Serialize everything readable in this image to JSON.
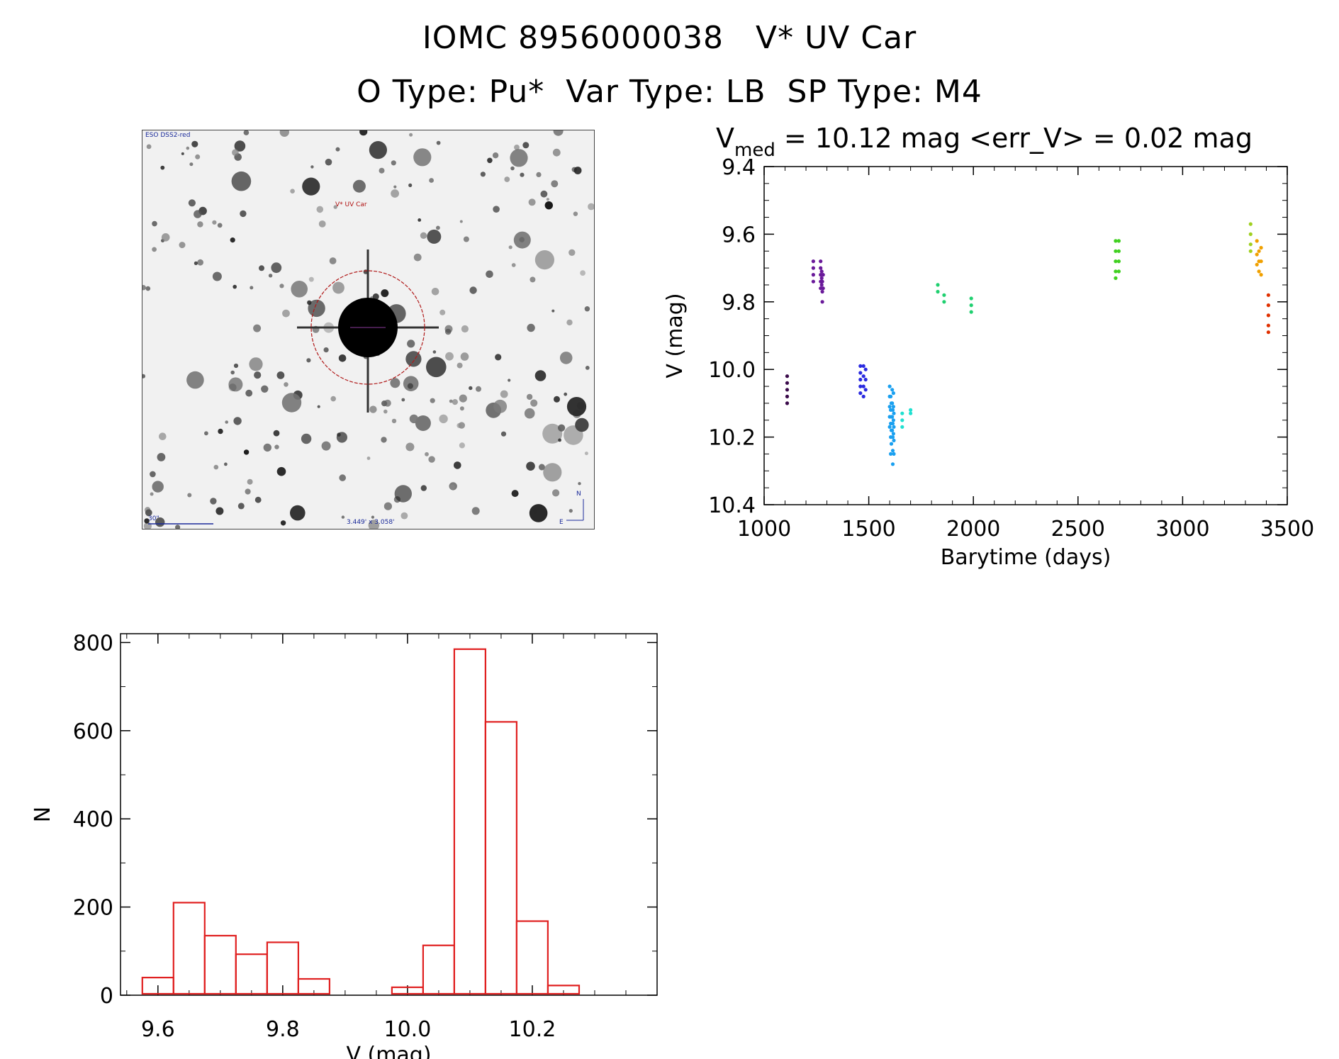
{
  "header": {
    "line1": "IOMC 8956000038   V* UV Car",
    "line2": "O Type: Pu*  Var Type: LB  SP Type: M4"
  },
  "finder": {
    "survey_label": "ESO DSS2-red",
    "target_label": "V* UV Car",
    "scale_label": "30\"",
    "fov_label": "3.449' x 3.058'",
    "north_label": "N",
    "east_label": "E"
  },
  "chart_data": [
    {
      "type": "scatter",
      "title_main": "V",
      "title_sub": "med",
      "title_rest": " = 10.12 mag <err_V> = 0.02 mag",
      "xlabel": "Barytime (days)",
      "ylabel": "V (mag)",
      "xlim": [
        1000,
        3500
      ],
      "ylim": [
        10.4,
        9.4
      ],
      "y_inverted": true,
      "xticks": [
        "1000",
        "1500",
        "2000",
        "2500",
        "3000",
        "3500"
      ],
      "yticks": [
        "9.4",
        "9.6",
        "9.8",
        "10.0",
        "10.2",
        "10.4"
      ],
      "series": [
        {
          "color": "#3a0a4a",
          "points": [
            [
              1110,
              10.02
            ],
            [
              1110,
              10.04
            ],
            [
              1110,
              10.06
            ],
            [
              1110,
              10.08
            ],
            [
              1110,
              10.1
            ]
          ]
        },
        {
          "color": "#6a1a9a",
          "points": [
            [
              1235,
              9.68
            ],
            [
              1235,
              9.7
            ],
            [
              1235,
              9.72
            ],
            [
              1235,
              9.74
            ],
            [
              1270,
              9.68
            ],
            [
              1270,
              9.7
            ],
            [
              1270,
              9.72
            ],
            [
              1270,
              9.74
            ],
            [
              1270,
              9.76
            ],
            [
              1275,
              9.71
            ],
            [
              1275,
              9.73
            ],
            [
              1275,
              9.75
            ],
            [
              1278,
              9.74
            ],
            [
              1278,
              9.77
            ],
            [
              1278,
              9.8
            ],
            [
              1282,
              9.72
            ],
            [
              1282,
              9.76
            ]
          ]
        },
        {
          "color": "#2a2ae0",
          "points": [
            [
              1460,
              9.99
            ],
            [
              1460,
              10.01
            ],
            [
              1460,
              10.03
            ],
            [
              1460,
              10.05
            ],
            [
              1460,
              10.07
            ],
            [
              1475,
              9.99
            ],
            [
              1475,
              10.02
            ],
            [
              1475,
              10.05
            ],
            [
              1475,
              10.08
            ],
            [
              1485,
              10.0
            ],
            [
              1485,
              10.03
            ],
            [
              1485,
              10.06
            ]
          ]
        },
        {
          "color": "#1aa0f0",
          "points": [
            [
              1600,
              10.05
            ],
            [
              1600,
              10.08
            ],
            [
              1600,
              10.11
            ],
            [
              1600,
              10.14
            ],
            [
              1600,
              10.17
            ],
            [
              1605,
              10.08
            ],
            [
              1605,
              10.12
            ],
            [
              1605,
              10.16
            ],
            [
              1605,
              10.2
            ],
            [
              1605,
              10.25
            ],
            [
              1608,
              10.1
            ],
            [
              1608,
              10.14
            ],
            [
              1608,
              10.18
            ],
            [
              1608,
              10.22
            ],
            [
              1612,
              10.06
            ],
            [
              1612,
              10.1
            ],
            [
              1612,
              10.14
            ],
            [
              1612,
              10.18
            ],
            [
              1615,
              10.12
            ],
            [
              1615,
              10.16
            ],
            [
              1615,
              10.2
            ],
            [
              1615,
              10.24
            ],
            [
              1615,
              10.28
            ],
            [
              1618,
              10.07
            ],
            [
              1618,
              10.11
            ],
            [
              1618,
              10.15
            ],
            [
              1618,
              10.19
            ],
            [
              1620,
              10.13
            ],
            [
              1620,
              10.17
            ],
            [
              1620,
              10.21
            ],
            [
              1620,
              10.25
            ]
          ]
        },
        {
          "color": "#20e0d0",
          "points": [
            [
              1660,
              10.13
            ],
            [
              1660,
              10.15
            ],
            [
              1660,
              10.17
            ],
            [
              1700,
              10.12
            ],
            [
              1700,
              10.13
            ]
          ]
        },
        {
          "color": "#20d070",
          "points": [
            [
              1830,
              9.75
            ],
            [
              1830,
              9.77
            ],
            [
              1860,
              9.78
            ],
            [
              1860,
              9.8
            ],
            [
              1990,
              9.79
            ],
            [
              1990,
              9.81
            ],
            [
              1990,
              9.83
            ]
          ]
        },
        {
          "color": "#40d020",
          "points": [
            [
              2680,
              9.62
            ],
            [
              2680,
              9.65
            ],
            [
              2680,
              9.68
            ],
            [
              2680,
              9.71
            ],
            [
              2680,
              9.73
            ],
            [
              2695,
              9.62
            ],
            [
              2695,
              9.65
            ],
            [
              2695,
              9.68
            ],
            [
              2695,
              9.71
            ]
          ]
        },
        {
          "color": "#a0d020",
          "points": [
            [
              3325,
              9.57
            ],
            [
              3325,
              9.6
            ],
            [
              3325,
              9.63
            ],
            [
              3325,
              9.65
            ]
          ]
        },
        {
          "color": "#f0a000",
          "points": [
            [
              3355,
              9.62
            ],
            [
              3355,
              9.66
            ],
            [
              3355,
              9.69
            ],
            [
              3365,
              9.65
            ],
            [
              3365,
              9.68
            ],
            [
              3365,
              9.71
            ],
            [
              3375,
              9.64
            ],
            [
              3375,
              9.68
            ],
            [
              3375,
              9.72
            ]
          ]
        },
        {
          "color": "#e03000",
          "points": [
            [
              3410,
              9.78
            ],
            [
              3410,
              9.81
            ],
            [
              3410,
              9.84
            ],
            [
              3410,
              9.87
            ],
            [
              3410,
              9.89
            ]
          ]
        }
      ]
    },
    {
      "type": "bar",
      "xlabel": "V (mag)",
      "ylabel": "N",
      "xlim": [
        9.54,
        10.4
      ],
      "ylim": [
        0,
        820
      ],
      "xticks": [
        "9.6",
        "9.8",
        "10.0",
        "10.2"
      ],
      "yticks": [
        "0",
        "200",
        "400",
        "600",
        "800"
      ],
      "bar_color": "#e02020",
      "bins": [
        9.575,
        9.625,
        9.675,
        9.725,
        9.775,
        9.825,
        9.875,
        9.925,
        9.975,
        10.025,
        10.075,
        10.125,
        10.175,
        10.225,
        10.275,
        10.325,
        10.375
      ],
      "counts": [
        40,
        210,
        135,
        93,
        120,
        37,
        0,
        0,
        18,
        113,
        785,
        620,
        168,
        22,
        0,
        0
      ]
    }
  ]
}
